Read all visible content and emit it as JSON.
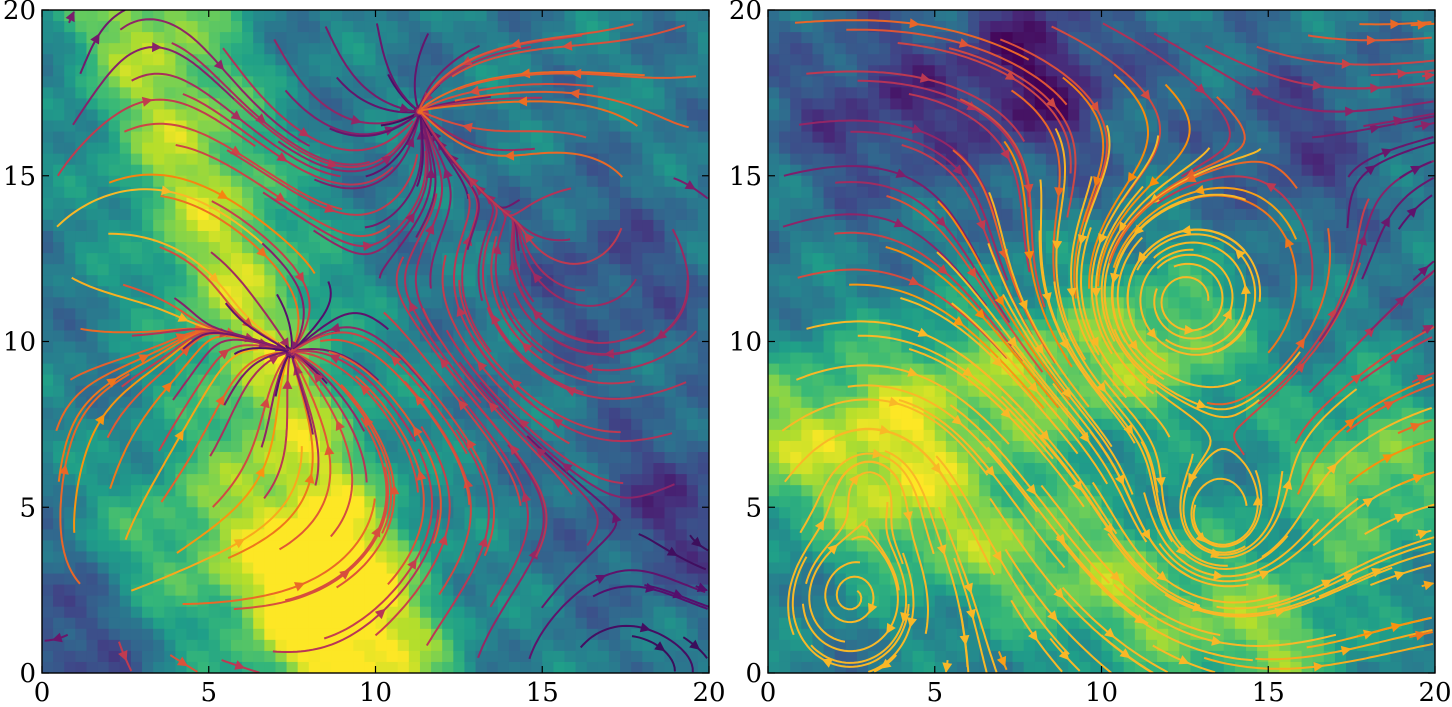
{
  "chart_data": [
    {
      "type": "heatmap",
      "overlay": "streamplot",
      "xlim": [
        0,
        20
      ],
      "ylim": [
        0,
        20
      ],
      "xticks": [
        "0",
        "5",
        "10",
        "15",
        "20"
      ],
      "yticks": [
        "0",
        "5",
        "10",
        "15",
        "20"
      ],
      "colormap_background": "viridis",
      "colormap_streamlines": "inferno",
      "title": "",
      "xlabel": "",
      "ylabel": "",
      "grid": false,
      "field_features": [
        {
          "kind": "bright_band",
          "from": [
            3,
            20
          ],
          "to": [
            10,
            0
          ],
          "intensity": 1.0
        },
        {
          "kind": "bright_blob",
          "at": [
            8,
            2
          ],
          "intensity": 0.95
        },
        {
          "kind": "bright_blob",
          "at": [
            4,
            4
          ],
          "intensity": 0.7
        },
        {
          "kind": "dark_blob",
          "at": [
            19,
            5
          ],
          "intensity": -0.6
        },
        {
          "kind": "dark_blob",
          "at": [
            0.5,
            1
          ],
          "intensity": -0.6
        },
        {
          "kind": "dark_blob",
          "at": [
            17,
            12
          ],
          "intensity": -0.45
        }
      ],
      "flow_sources": [
        [
          2.5,
          2.5
        ],
        [
          17,
          14.5
        ],
        [
          0.5,
          13
        ]
      ],
      "flow_sinks": [
        [
          7.5,
          9.5
        ],
        [
          15,
          13.5
        ],
        [
          11.5,
          17
        ],
        [
          4,
          10.5
        ]
      ]
    },
    {
      "type": "heatmap",
      "overlay": "streamplot",
      "xlim": [
        0,
        20
      ],
      "ylim": [
        0,
        20
      ],
      "xticks": [
        "0",
        "5",
        "10",
        "15",
        "20"
      ],
      "yticks": [
        "0",
        "5",
        "10",
        "15",
        "20"
      ],
      "colormap_background": "viridis",
      "colormap_streamlines": "inferno",
      "title": "",
      "xlabel": "",
      "ylabel": "",
      "grid": false,
      "field_features": [
        {
          "kind": "bright_band",
          "from": [
            0,
            7
          ],
          "to": [
            12,
            10
          ],
          "intensity": 0.9
        },
        {
          "kind": "bright_band",
          "from": [
            4,
            5
          ],
          "to": [
            15,
            1
          ],
          "intensity": 0.85
        },
        {
          "kind": "bright_blob",
          "at": [
            18,
            6
          ],
          "intensity": 0.95
        },
        {
          "kind": "dark_blob",
          "at": [
            8,
            18
          ],
          "intensity": -0.9
        },
        {
          "kind": "dark_blob",
          "at": [
            3,
            17
          ],
          "intensity": -0.6
        },
        {
          "kind": "dark_blob",
          "at": [
            16,
            16
          ],
          "intensity": -0.5
        }
      ],
      "vortex_centers": [
        [
          12.5,
          11.2
        ],
        [
          2.5,
          2.3
        ],
        [
          13.5,
          4.5
        ],
        [
          3,
          5.8
        ]
      ],
      "flow_direction": "rightward-shear"
    }
  ]
}
